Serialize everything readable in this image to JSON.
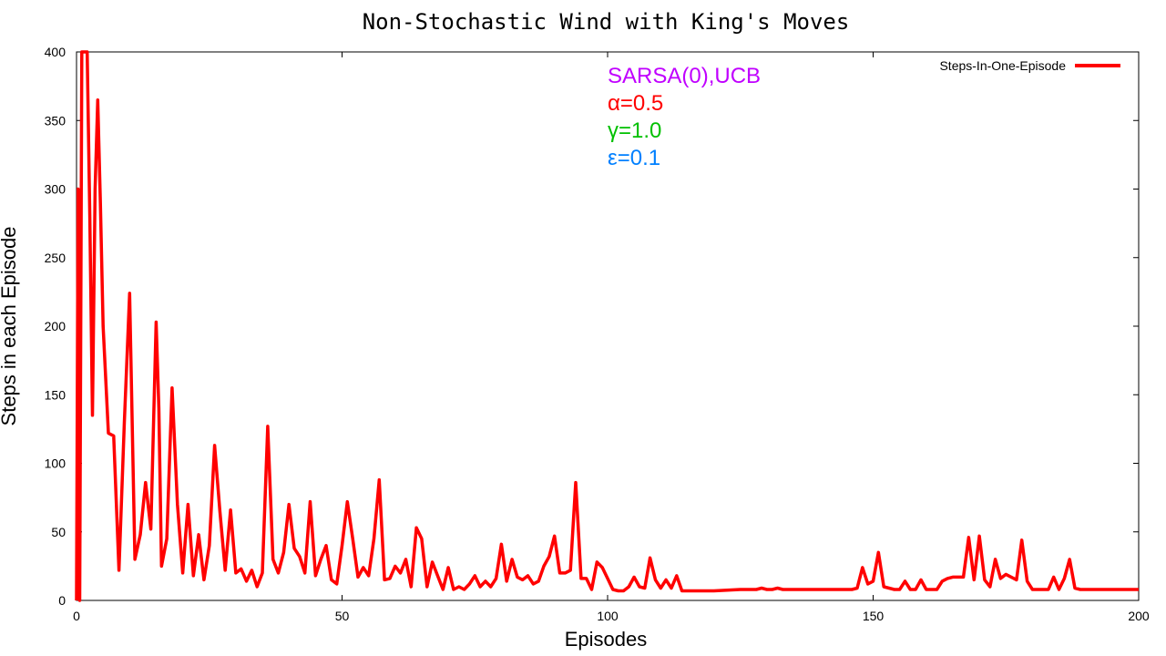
{
  "chart_data": {
    "type": "line",
    "title": "Non-Stochastic Wind with King's Moves",
    "xlabel": "Episodes",
    "ylabel": "Steps in each Episode",
    "xlim": [
      0,
      200
    ],
    "ylim": [
      0,
      400
    ],
    "xticks": [
      0,
      50,
      100,
      150,
      200
    ],
    "yticks": [
      0,
      50,
      100,
      150,
      200,
      250,
      300,
      350,
      400
    ],
    "xtick_labels": [
      "0",
      "50",
      "100",
      "150",
      "200"
    ],
    "ytick_labels": [
      "0",
      "50",
      "100",
      "150",
      "200",
      "250",
      "300",
      "350",
      "400"
    ],
    "grid": false,
    "legend_position": "top-right",
    "annotations": [
      {
        "text": "SARSA(0),UCB",
        "color": "#c000ff"
      },
      {
        "text": "α=0.5",
        "color": "#ff0000"
      },
      {
        "text": "γ=1.0",
        "color": "#00c000"
      },
      {
        "text": "ε=0.1",
        "color": "#0080ff"
      }
    ],
    "series": [
      {
        "name": "Steps-In-One-Episode",
        "color": "#ff0000",
        "x": [
          0,
          0.3,
          0.6,
          1,
          1.5,
          2,
          2.5,
          3,
          3.5,
          4,
          4.5,
          5,
          6,
          7,
          8,
          9,
          10,
          11,
          12,
          13,
          14,
          15,
          15.5,
          16,
          17,
          18,
          19,
          20,
          21,
          22,
          23,
          24,
          25,
          26,
          27,
          28,
          29,
          30,
          31,
          32,
          33,
          34,
          35,
          36,
          37,
          38,
          39,
          40,
          41,
          42,
          43,
          44,
          45,
          46,
          47,
          48,
          49,
          50,
          51,
          52,
          53,
          54,
          55,
          56,
          57,
          58,
          59,
          60,
          61,
          62,
          63,
          64,
          65,
          66,
          67,
          68,
          69,
          70,
          71,
          72,
          73,
          74,
          75,
          76,
          77,
          78,
          79,
          80,
          81,
          82,
          83,
          84,
          85,
          86,
          87,
          88,
          89,
          90,
          91,
          92,
          93,
          94,
          95,
          96,
          97,
          98,
          99,
          100,
          101,
          102,
          103,
          104,
          105,
          106,
          107,
          108,
          109,
          110,
          111,
          112,
          113,
          114,
          115,
          120,
          125,
          128,
          129,
          130,
          131,
          132,
          133,
          135,
          140,
          145,
          146,
          147,
          148,
          149,
          150,
          151,
          152,
          153,
          154,
          155,
          156,
          157,
          158,
          159,
          160,
          161,
          162,
          163,
          164,
          165,
          166,
          167,
          168,
          169,
          170,
          171,
          172,
          173,
          174,
          175,
          176,
          177,
          178,
          179,
          180,
          181,
          182,
          183,
          184,
          185,
          186,
          187,
          188,
          189,
          190,
          195,
          200
        ],
        "y": [
          0,
          300,
          0,
          400,
          400,
          400,
          280,
          135,
          300,
          365,
          290,
          200,
          122,
          120,
          22,
          130,
          224,
          30,
          48,
          86,
          52,
          203,
          140,
          25,
          45,
          155,
          70,
          20,
          70,
          18,
          48,
          15,
          40,
          113,
          65,
          22,
          66,
          20,
          23,
          14,
          22,
          10,
          20,
          127,
          30,
          20,
          35,
          70,
          38,
          32,
          20,
          72,
          18,
          30,
          40,
          15,
          12,
          40,
          72,
          45,
          17,
          24,
          18,
          45,
          88,
          15,
          16,
          25,
          20,
          30,
          10,
          53,
          45,
          10,
          28,
          18,
          8,
          24,
          8,
          10,
          8,
          12,
          18,
          10,
          14,
          10,
          16,
          41,
          14,
          30,
          17,
          15,
          18,
          12,
          14,
          25,
          32,
          47,
          20,
          20,
          22,
          86,
          16,
          16,
          8,
          28,
          24,
          16,
          8,
          7,
          7,
          10,
          17,
          10,
          9,
          31,
          15,
          9,
          15,
          9,
          18,
          7,
          7,
          7,
          8,
          8,
          9,
          8,
          8,
          9,
          8,
          8,
          8,
          8,
          8,
          9,
          24,
          12,
          14,
          35,
          10,
          9,
          8,
          8,
          14,
          8,
          8,
          15,
          8,
          8,
          8,
          14,
          16,
          17,
          17,
          17,
          46,
          15,
          47,
          15,
          10,
          30,
          16,
          19,
          17,
          15,
          44,
          14,
          8,
          8,
          8,
          8,
          17,
          8,
          16,
          30,
          9,
          8,
          8,
          8,
          8
        ]
      }
    ]
  }
}
